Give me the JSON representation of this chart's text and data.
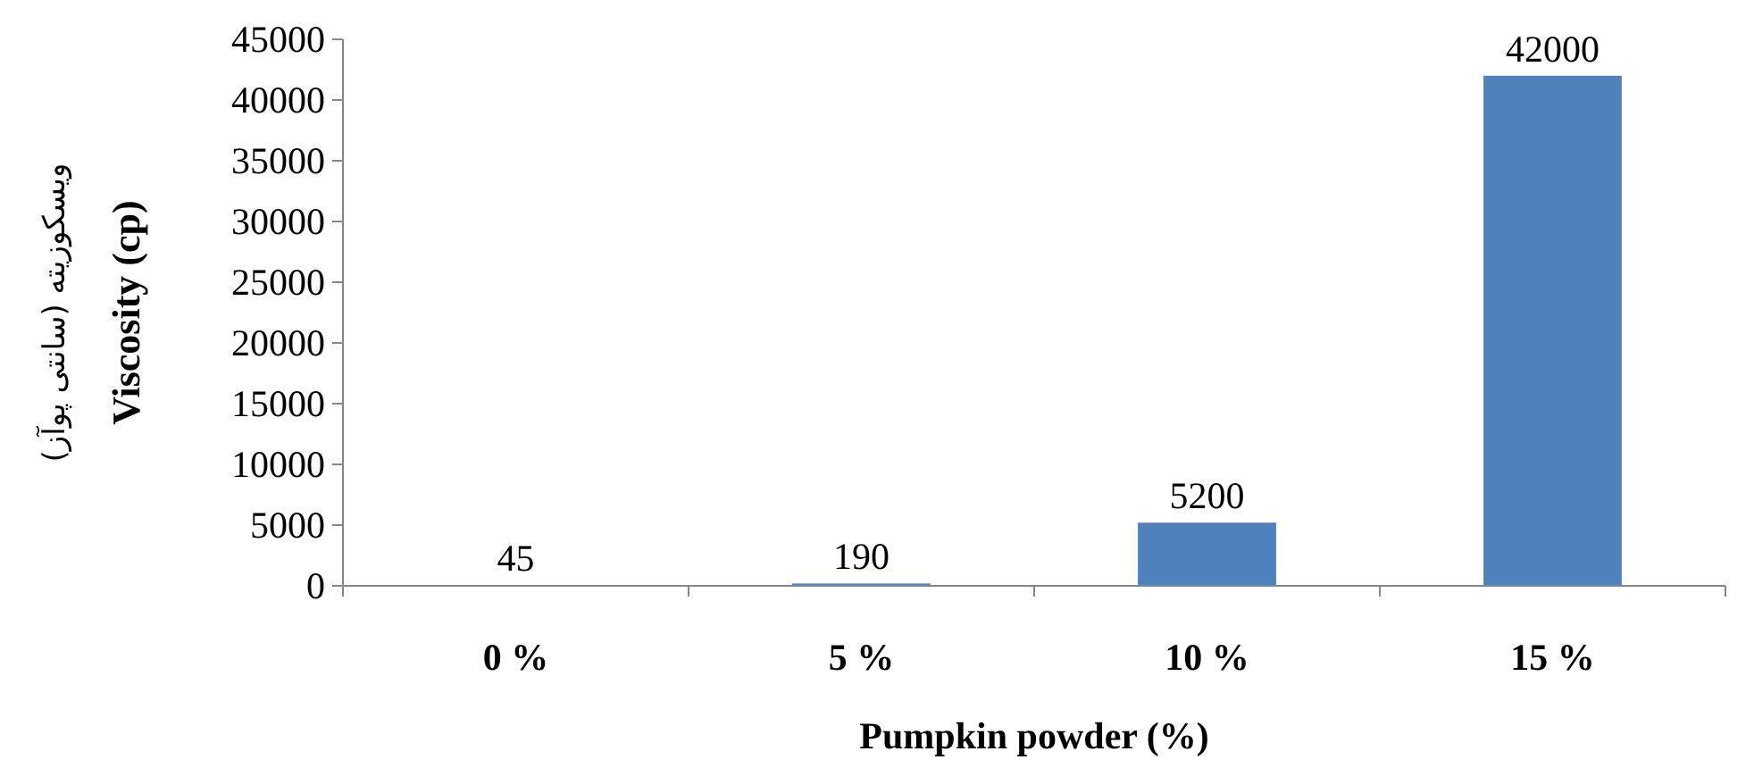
{
  "chart_data": {
    "type": "bar",
    "ylabel": "Viscosity (cp)",
    "xlabel": "Pumpkin powder (%)",
    "annotations": [
      "ویسکوزیته (سانتی پوآز)"
    ],
    "categories": [
      "0 %",
      "5 %",
      "10 %",
      "15 %"
    ],
    "values": [
      45,
      190,
      5200,
      42000
    ],
    "color": "#4f81bd",
    "ylim": [
      0,
      45000
    ],
    "yticks": [
      0,
      5000,
      10000,
      15000,
      20000,
      25000,
      30000,
      35000,
      40000,
      45000
    ],
    "data_labels": true,
    "grid": false
  }
}
